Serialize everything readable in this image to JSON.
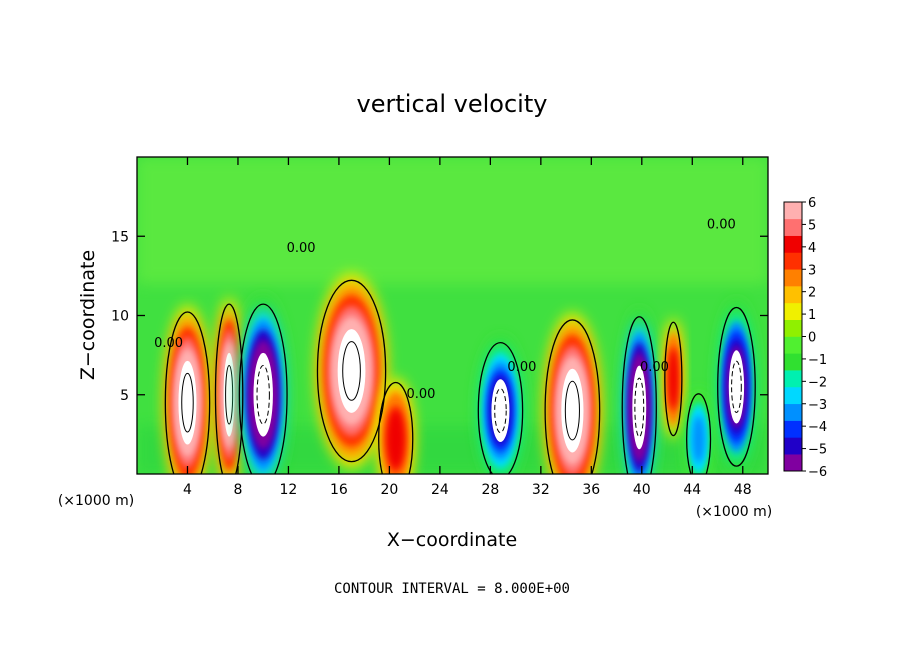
{
  "chart_data": {
    "type": "heatmap",
    "title": "vertical velocity",
    "xlabel": "X−coordinate",
    "ylabel": "Z−coordinate",
    "x_unit_left": "(×1000 m)",
    "x_unit_right": "(×1000 m)",
    "xlim": [
      0,
      50
    ],
    "ylim": [
      0,
      20
    ],
    "x_ticks": [
      4,
      8,
      12,
      16,
      20,
      24,
      28,
      32,
      36,
      40,
      44,
      48
    ],
    "y_ticks": [
      5,
      10,
      15
    ],
    "footer": "CONTOUR INTERVAL = 8.000E+00",
    "contour_label": "0.00",
    "contour_labels": [
      {
        "text": "0.00",
        "x": 2.5,
        "y": 8.0
      },
      {
        "text": "0.00",
        "x": 13.0,
        "y": 14.0
      },
      {
        "text": "0.00",
        "x": 22.5,
        "y": 4.8
      },
      {
        "text": "0.00",
        "x": 30.5,
        "y": 6.5
      },
      {
        "text": "0.00",
        "x": 41.0,
        "y": 6.5
      },
      {
        "text": "0.00",
        "x": 46.3,
        "y": 15.5
      }
    ],
    "colorbar": {
      "labels": [
        "6",
        "5",
        "4",
        "3",
        "2",
        "1",
        "0",
        "−1",
        "−2",
        "−3",
        "−4",
        "−5",
        "−6"
      ],
      "min": -6,
      "max": 6,
      "colors": [
        "#8000a0",
        "#2000c8",
        "#0030ff",
        "#0090ff",
        "#00d8ff",
        "#00f0b0",
        "#30e030",
        "#50f030",
        "#90f000",
        "#f0f000",
        "#ffc000",
        "#ff8000",
        "#ff3000",
        "#f00000",
        "#ff7070",
        "#ffb0b0"
      ]
    },
    "cells": [
      {
        "x": 4,
        "y": 4.5,
        "w": 1.3,
        "v": 8
      },
      {
        "x": 7.3,
        "y": 5,
        "w": 0.8,
        "v": 8
      },
      {
        "x": 10,
        "y": 5,
        "w": 1.4,
        "v": -8
      },
      {
        "x": 17,
        "y": 6.5,
        "w": 2.0,
        "v": 8
      },
      {
        "x": 20.5,
        "y": 2.2,
        "w": 1.0,
        "v": 5
      },
      {
        "x": 28.8,
        "y": 4,
        "w": 1.3,
        "v": -6
      },
      {
        "x": 34.5,
        "y": 4,
        "w": 1.6,
        "v": 8
      },
      {
        "x": 39.8,
        "y": 4.2,
        "w": 1.0,
        "v": -8
      },
      {
        "x": 42.5,
        "y": 6,
        "w": 0.5,
        "v": 5
      },
      {
        "x": 44.5,
        "y": 2.2,
        "w": 0.7,
        "v": -4
      },
      {
        "x": 47.5,
        "y": 5.5,
        "w": 1.1,
        "v": -7
      }
    ]
  }
}
